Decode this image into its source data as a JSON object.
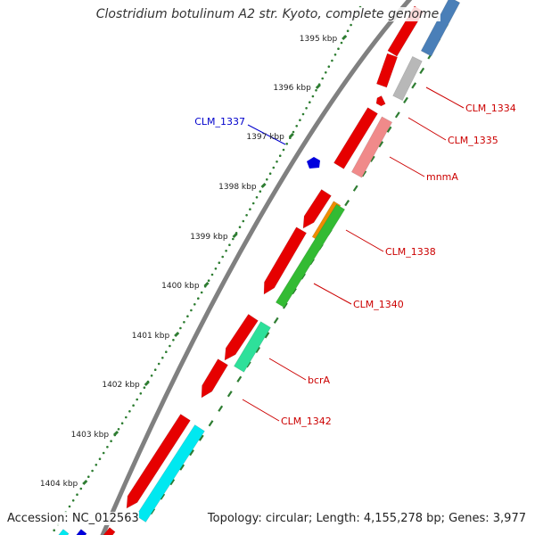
{
  "title": "Clostridium botulinum A2 str. Kyoto, complete genome",
  "tick_labels": [
    "1395 kbp",
    "1396 kbp",
    "1397 kbp",
    "1398 kbp",
    "1399 kbp",
    "1400 kbp",
    "1401 kbp",
    "1402 kbp",
    "1403 kbp",
    "1404 kbp"
  ],
  "gene_labels": [
    {
      "text": "CLM_1334",
      "color": "#cc0000"
    },
    {
      "text": "CLM_1335",
      "color": "#cc0000"
    },
    {
      "text": "mnmA",
      "color": "#cc0000"
    },
    {
      "text": "CLM_1337",
      "color": "#0000cc"
    },
    {
      "text": "CLM_1338",
      "color": "#cc0000"
    },
    {
      "text": "CLM_1340",
      "color": "#cc0000"
    },
    {
      "text": "bcrA",
      "color": "#cc0000"
    },
    {
      "text": "CLM_1342",
      "color": "#cc0000"
    }
  ],
  "footer": {
    "accession": "Accession: NC_012563",
    "summary": "Topology: circular; Length: 4,155,278 bp; Genes: 3,977"
  },
  "colors": {
    "forward_gene": "#e60000",
    "reverse_gene_red": "#e60000",
    "grey_gene": "#b8b8b8",
    "pink_gene": "#f08a8a",
    "orange_gene": "#f08c00",
    "green_gene": "#33bb33",
    "mint_gene": "#2ee09a",
    "cyan_gene": "#00e8f0",
    "steel_gene": "#4a7fb8",
    "blue_gene": "#0000dd",
    "backbone": "#808080",
    "ticks": "#2e7d32"
  }
}
